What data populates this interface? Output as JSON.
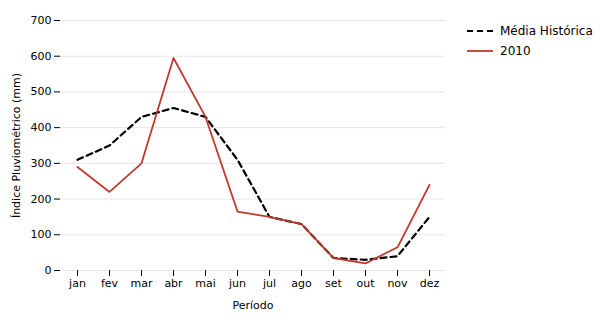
{
  "chart_data": {
    "type": "line",
    "xlabel": "Período",
    "ylabel": "Índice Pluviométrico (mm)",
    "categories": [
      "jan",
      "fev",
      "mar",
      "abr",
      "mai",
      "jun",
      "jul",
      "ago",
      "set",
      "out",
      "nov",
      "dez"
    ],
    "series": [
      {
        "name": "Média Histórica",
        "color": "#000000",
        "line_style": "dashed",
        "values": [
          310,
          350,
          430,
          455,
          430,
          310,
          150,
          130,
          35,
          30,
          40,
          150
        ]
      },
      {
        "name": "2010",
        "color": "#c0392b",
        "line_style": "solid",
        "values": [
          290,
          220,
          300,
          595,
          430,
          165,
          150,
          130,
          35,
          20,
          65,
          240
        ]
      }
    ],
    "ylim": [
      0,
      700
    ],
    "yticks": [
      0,
      100,
      200,
      300,
      400,
      500,
      600,
      700
    ],
    "grid": true,
    "legend": "right"
  }
}
